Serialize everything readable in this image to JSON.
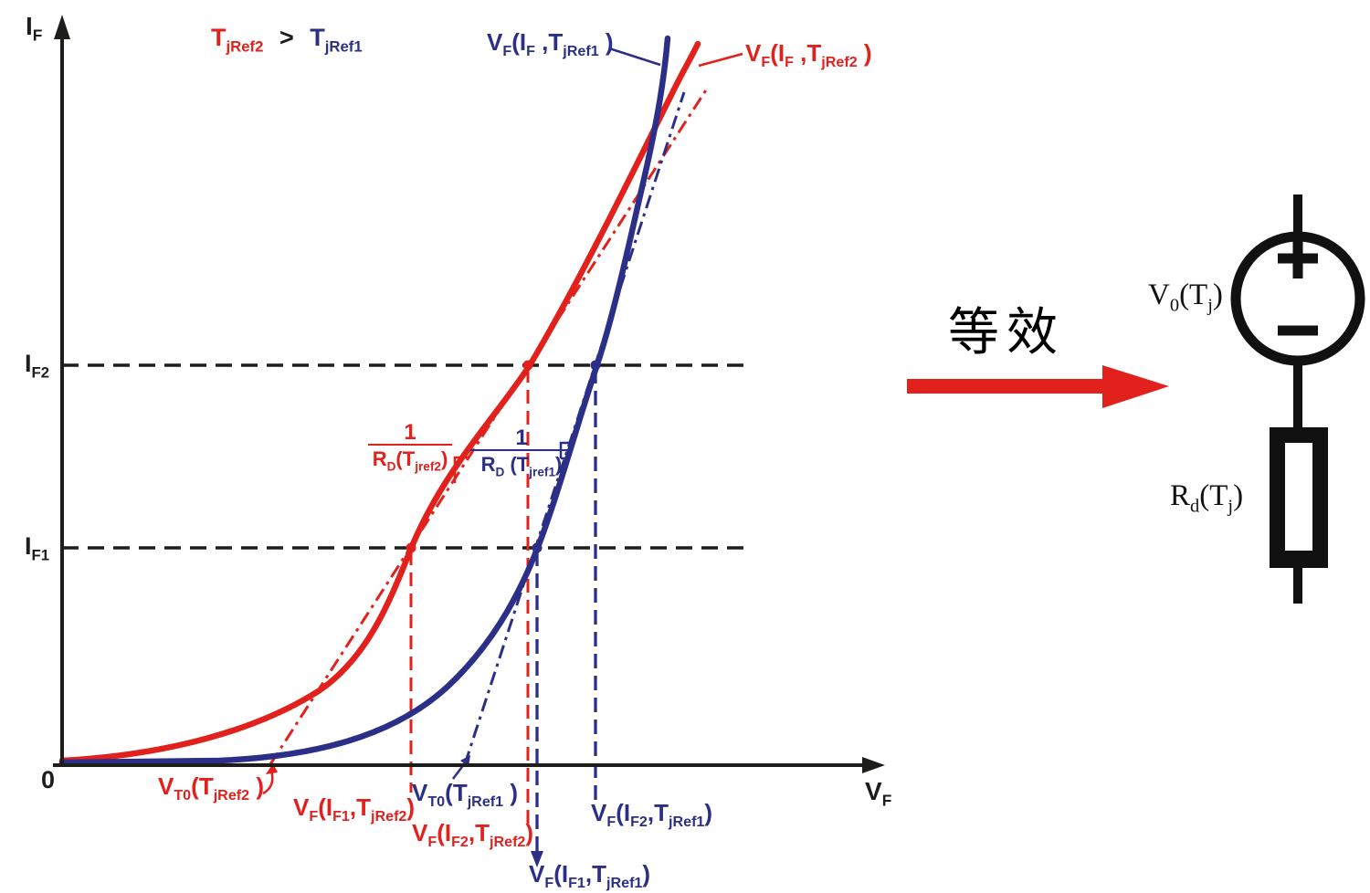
{
  "colors": {
    "red": "#e2211c",
    "blue": "#2b2f88",
    "black": "#1d1d1b"
  },
  "plot": {
    "labels": {
      "if_axis": [
        {
          "t": "I"
        },
        {
          "s": "F"
        }
      ],
      "vf_axis": [
        {
          "t": "V"
        },
        {
          "s": "F"
        }
      ],
      "origin": [
        {
          "t": "0"
        }
      ],
      "if2_tick": [
        {
          "t": "I"
        },
        {
          "s": "F2"
        }
      ],
      "if1_tick": [
        {
          "t": "I"
        },
        {
          "s": "F1"
        }
      ],
      "temp_red": [
        {
          "t": "T"
        },
        {
          "s": "jRef2"
        }
      ],
      "temp_gt": [
        {
          "t": ">"
        }
      ],
      "temp_blue": [
        {
          "t": "T"
        },
        {
          "s": "jRef1"
        }
      ],
      "curve_blue": [
        {
          "t": "V"
        },
        {
          "s": "F"
        },
        {
          "t": "(I"
        },
        {
          "s": "F"
        },
        {
          "t": " ,T"
        },
        {
          "s": "jRef1"
        },
        {
          "t": " )"
        }
      ],
      "curve_red": [
        {
          "t": "V"
        },
        {
          "s": "F"
        },
        {
          "t": "(I"
        },
        {
          "s": "F"
        },
        {
          "t": " ,T"
        },
        {
          "s": "jRef2"
        },
        {
          "t": " )"
        }
      ],
      "slope_red_num": [
        {
          "t": "1"
        }
      ],
      "slope_red_den": [
        {
          "t": "R"
        },
        {
          "s": "D"
        },
        {
          "t": "(T"
        },
        {
          "s": "jref2"
        },
        {
          "t": ")"
        }
      ],
      "slope_blue_num": [
        {
          "t": "1"
        }
      ],
      "slope_blue_den": [
        {
          "t": "R"
        },
        {
          "s": "D"
        },
        {
          "t": " (T"
        },
        {
          "s": "jref1"
        },
        {
          "t": ")"
        }
      ],
      "vt0_red": [
        {
          "t": "V"
        },
        {
          "s": "T0"
        },
        {
          "t": "(T"
        },
        {
          "s": "jRef2"
        },
        {
          "t": " )"
        }
      ],
      "vt0_blue": [
        {
          "t": "V"
        },
        {
          "s": "T0"
        },
        {
          "t": "(T"
        },
        {
          "s": "jRef1"
        },
        {
          "t": " )"
        }
      ],
      "vf_if1_red": [
        {
          "t": "V"
        },
        {
          "s": "F"
        },
        {
          "t": "(I"
        },
        {
          "s": "F1"
        },
        {
          "t": ",T"
        },
        {
          "s": "jRef2"
        },
        {
          "t": ")"
        }
      ],
      "vf_if2_red": [
        {
          "t": "V"
        },
        {
          "s": "F"
        },
        {
          "t": "(I"
        },
        {
          "s": "F2"
        },
        {
          "t": ",T"
        },
        {
          "s": "jRef2"
        },
        {
          "t": ")"
        }
      ],
      "vf_if2_blue": [
        {
          "t": "V"
        },
        {
          "s": "F"
        },
        {
          "t": "(I"
        },
        {
          "s": "F2"
        },
        {
          "t": ",T"
        },
        {
          "s": "jRef1"
        },
        {
          "t": ")"
        }
      ],
      "vf_if1_blue": [
        {
          "t": "V"
        },
        {
          "s": "F"
        },
        {
          "t": "(I"
        },
        {
          "s": "F1"
        },
        {
          "t": ",T"
        },
        {
          "s": "jRef1"
        },
        {
          "t": ")"
        }
      ]
    }
  },
  "equivalence": {
    "caption": "等效"
  },
  "circuit": {
    "source_label": [
      {
        "t": "V"
      },
      {
        "s": "0"
      },
      {
        "t": "(T"
      },
      {
        "s": "j"
      },
      {
        "t": ")"
      }
    ],
    "resistor_label": [
      {
        "t": "R"
      },
      {
        "s": "d"
      },
      {
        "t": "(T"
      },
      {
        "s": "j"
      },
      {
        "t": ")"
      }
    ],
    "plus": "+",
    "minus": "−"
  }
}
